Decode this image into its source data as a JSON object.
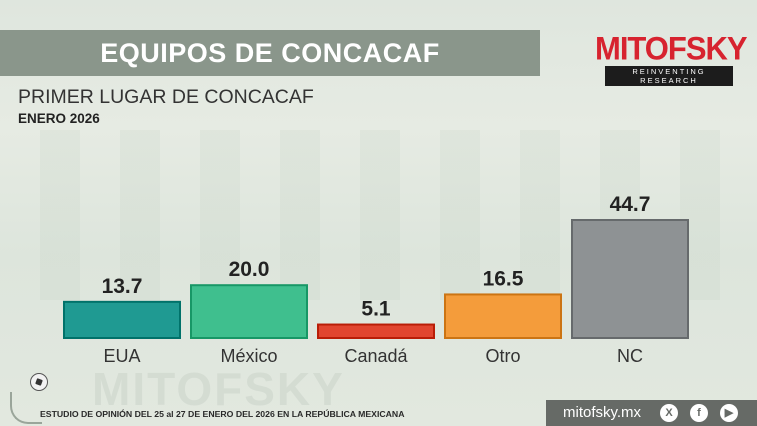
{
  "header": {
    "banner_title": "EQUIPOS DE CONCACAF",
    "subtitle": "PRIMER LUGAR DE CONCACAF",
    "date": "ENERO 2026"
  },
  "brand": {
    "name": "MITOFSKY",
    "tagline": "REINVENTING RESEARCH",
    "watermark": "MITOFSKY"
  },
  "footer": {
    "note": "ESTUDIO DE OPINIÓN DEL 25 al 27 DE ENERO DEL 2026 EN LA REPÚBLICA MEXICANA",
    "url": "mitofsky.mx",
    "icons": [
      "x-icon",
      "facebook-icon",
      "youtube-icon"
    ]
  },
  "chart_data": {
    "type": "bar",
    "title": "PRIMER LUGAR DE CONCACAF",
    "xlabel": "",
    "ylabel": "",
    "ylim": [
      0,
      50
    ],
    "categories": [
      "EUA",
      "México",
      "Canadá",
      "Otro",
      "NC"
    ],
    "values": [
      13.7,
      20.0,
      5.1,
      16.5,
      44.7
    ],
    "value_labels": [
      "13.7",
      "20.0",
      "5.1",
      "16.5",
      "44.7"
    ],
    "colors": [
      "#1f9a92",
      "#3fbf8e",
      "#e1452f",
      "#f49c3b",
      "#8e9294"
    ],
    "grid": false,
    "legend": "none"
  }
}
